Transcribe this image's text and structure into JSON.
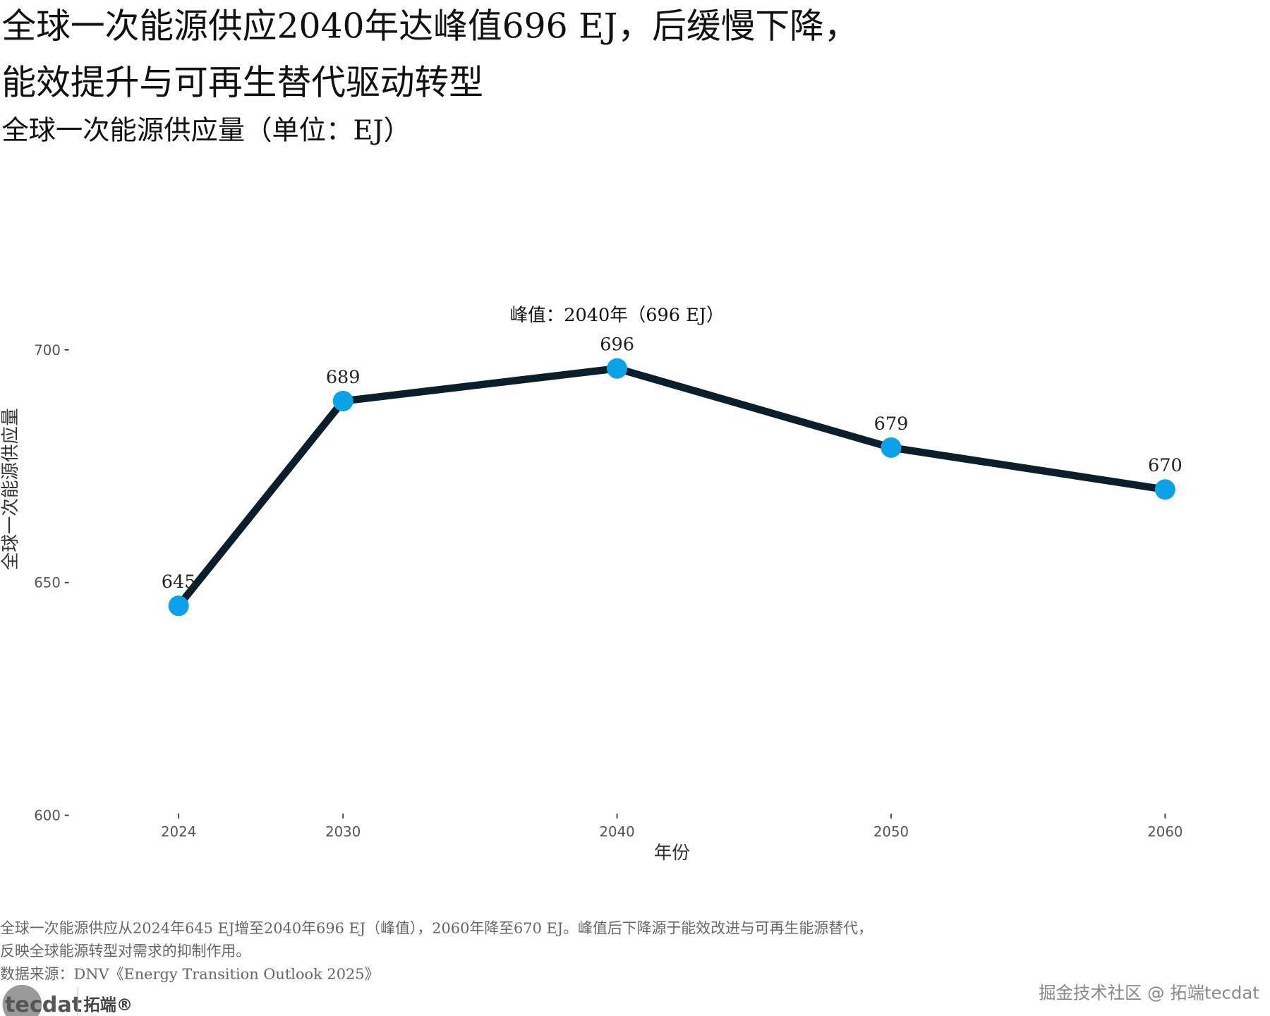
{
  "title_line1": "全球一次能源供应2040年达峰值696 EJ，后缓慢下降，",
  "title_line2": "能效提升与可再生替代驱动转型",
  "subtitle": "全球一次能源供应量（单位：EJ）",
  "caption_line1": "全球一次能源供应从2024年645 EJ增至2040年696 EJ（峰值），2060年降至670 EJ。峰值后下降源于能效改进与可再生能源替代，",
  "caption_line2": "反映全球能源转型对需求的抑制作用。",
  "source": "数据来源：DNV《Energy Transition Outlook 2025》",
  "logo": {
    "text": "tecdat",
    "cn": "拓端®"
  },
  "watermark": "掘金技术社区 @ 拓端tecdat",
  "colors": {
    "line": "#0b1e2b",
    "point": "#0aa3e8",
    "text": "#222222",
    "muted": "#666666"
  },
  "chart_data": {
    "type": "line",
    "title": "全球一次能源供应2040年达峰值696 EJ，后缓慢下降，能效提升与可再生替代驱动转型",
    "subtitle": "全球一次能源供应量（单位：EJ）",
    "xlabel": "年份",
    "ylabel": "全球一次能源供应量",
    "x": [
      2024,
      2030,
      2040,
      2050,
      2060
    ],
    "x_tick_labels": [
      "2024",
      "2030",
      "2040",
      "2050",
      "2060"
    ],
    "values": [
      645,
      689,
      696,
      679,
      670
    ],
    "data_labels": [
      "645",
      "689",
      "696",
      "679",
      "670"
    ],
    "y_ticks": [
      600,
      650,
      700
    ],
    "y_tick_labels": [
      "600",
      "650",
      "700"
    ],
    "ylim": [
      600,
      700
    ],
    "grid": false,
    "annotation": {
      "text": "峰值：2040年（696 EJ）",
      "x": 2040,
      "y": 700
    }
  }
}
